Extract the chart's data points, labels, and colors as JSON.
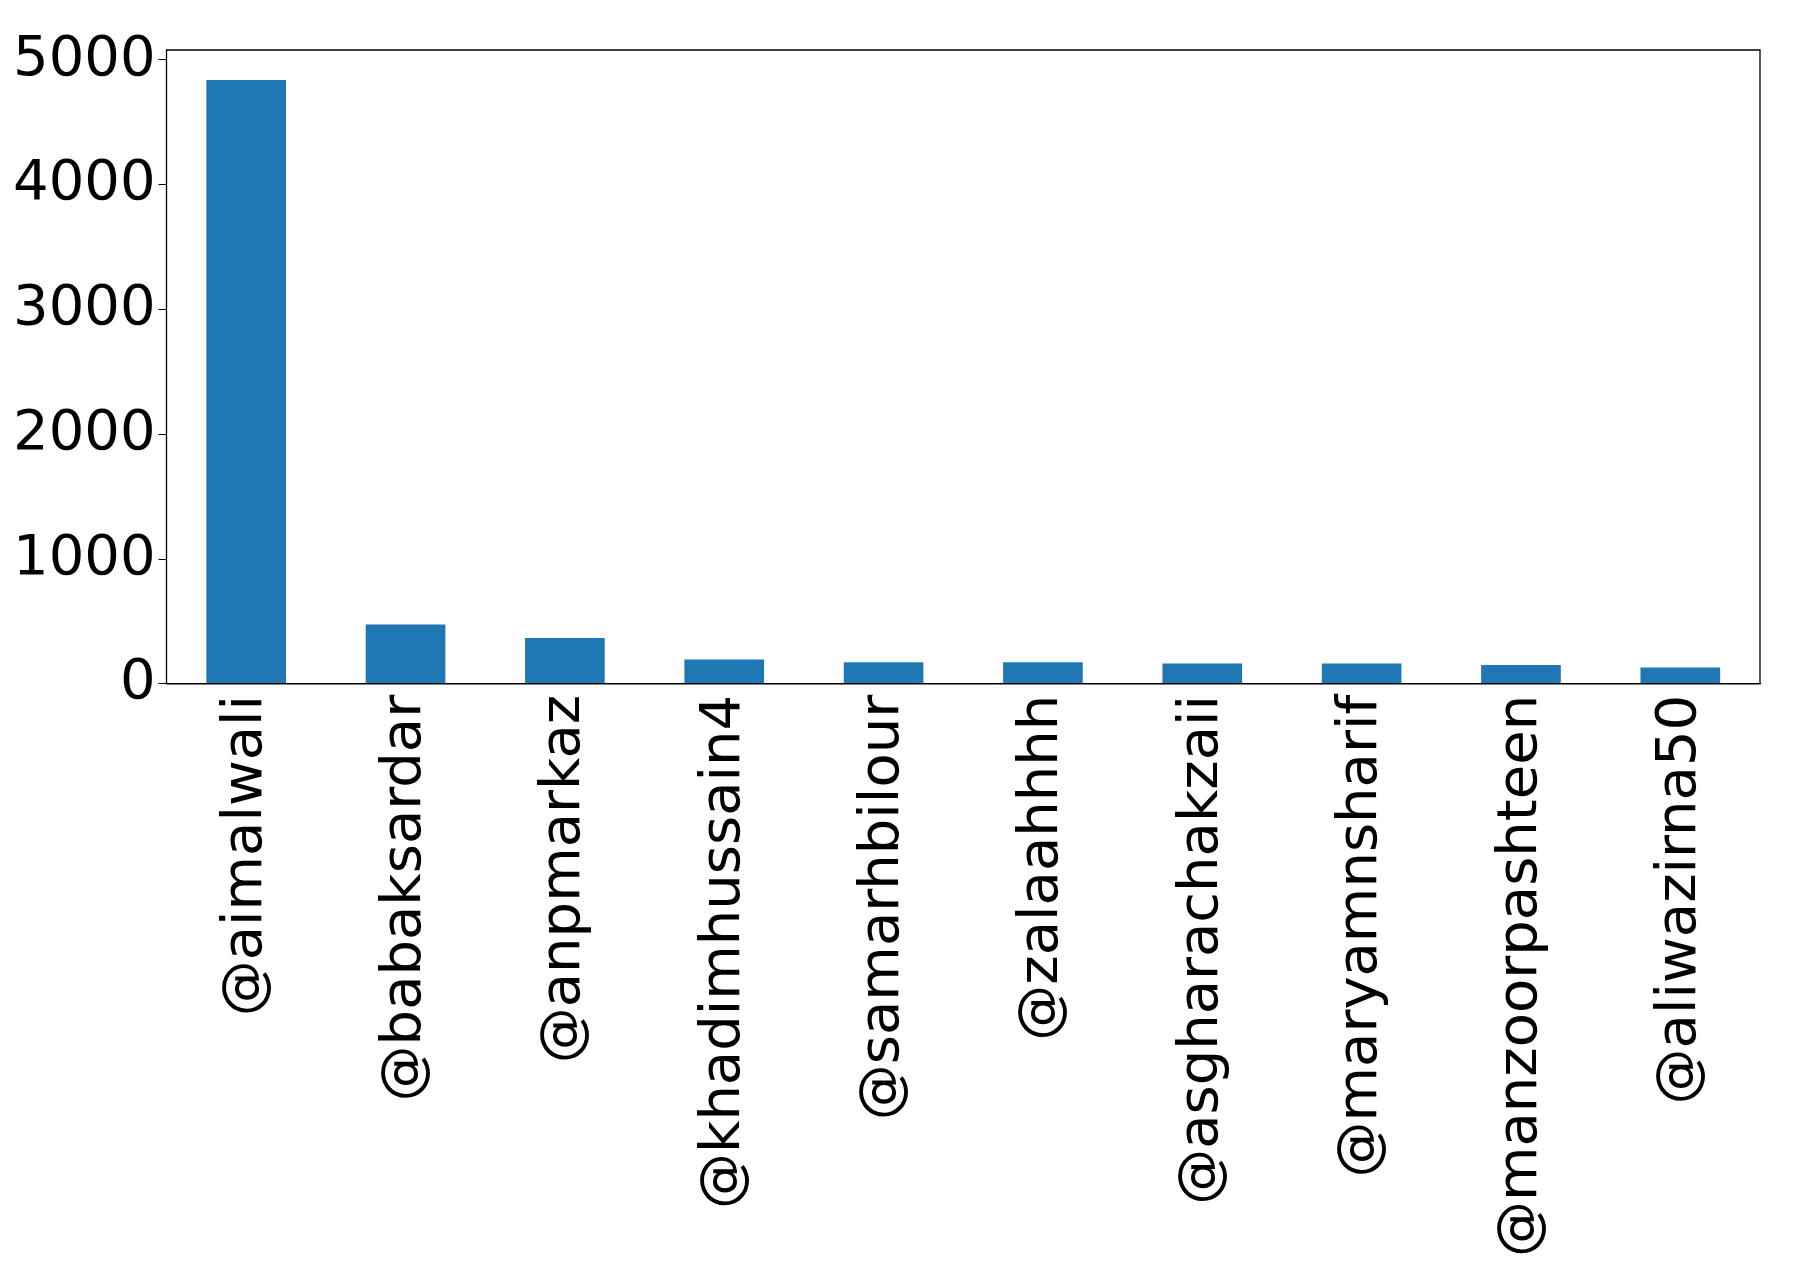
{
  "chart_data": {
    "type": "bar",
    "categories": [
      "@aimalwali",
      "@babaksardar",
      "@anpmarkaz",
      "@khadimhussain4",
      "@samarhbilour",
      "@zalaahhhh",
      "@asgharachakzaii",
      "@maryamnsharif",
      "@manzoorpashteen",
      "@aliwazirna50"
    ],
    "values": [
      4840,
      475,
      367,
      194,
      173,
      173,
      162,
      162,
      151,
      130
    ],
    "color": "#1f77b4",
    "ylim": [
      0,
      5080
    ],
    "yticks": [
      0,
      1000,
      2000,
      3000,
      4000,
      5000
    ],
    "grid": false,
    "legend": false
  }
}
